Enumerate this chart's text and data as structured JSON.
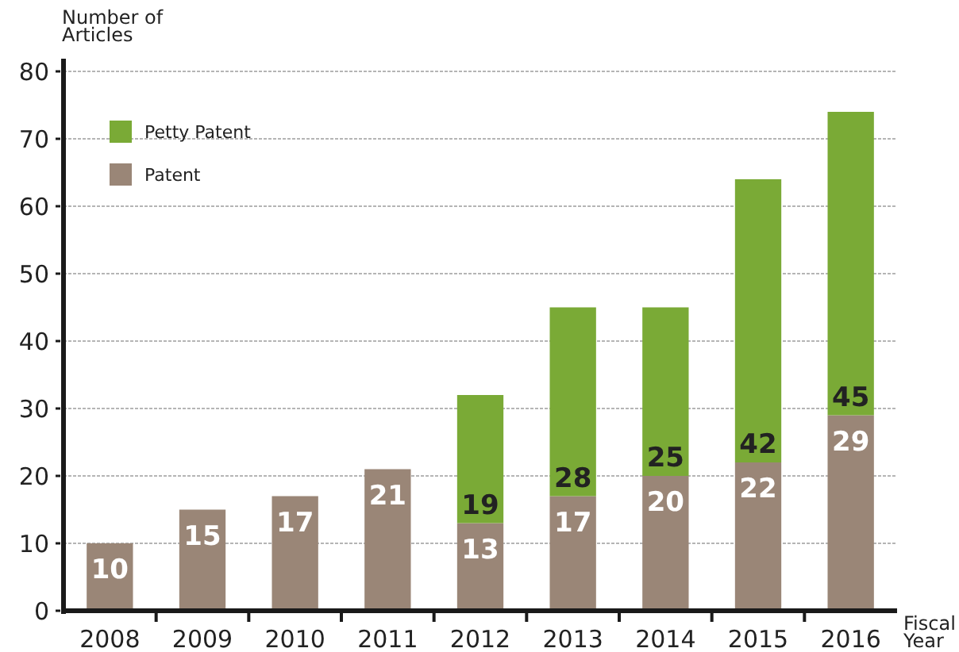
{
  "chart_data": {
    "type": "bar",
    "stacked": true,
    "xlabel": "Fiscal Year",
    "ylabel": "Number of Articles",
    "categories": [
      "2008",
      "2009",
      "2010",
      "2011",
      "2012",
      "2013",
      "2014",
      "2015",
      "2016"
    ],
    "series": [
      {
        "name": "Patent",
        "color": "#9a8677",
        "values": [
          10,
          15,
          17,
          21,
          13,
          17,
          20,
          22,
          29
        ]
      },
      {
        "name": "Petty Patent",
        "color": "#7aaa36",
        "values": [
          null,
          null,
          null,
          null,
          19,
          28,
          25,
          42,
          45
        ]
      }
    ],
    "ylim": [
      0,
      80
    ],
    "yticks": [
      0,
      10,
      20,
      30,
      40,
      50,
      60,
      70,
      80
    ],
    "grid": "y",
    "legend": "top left",
    "data_labels": true
  }
}
